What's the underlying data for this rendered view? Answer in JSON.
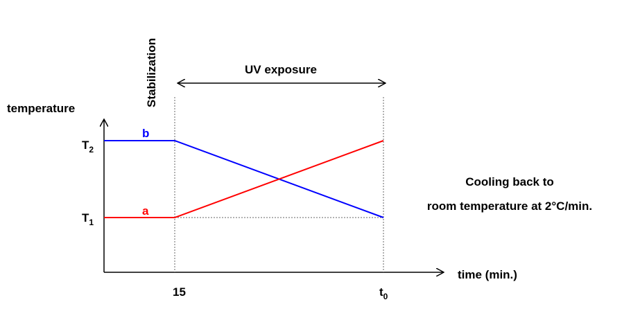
{
  "phase_labels": {
    "stabilization": "Stabilization",
    "uv_exposure": "UV exposure"
  },
  "y_axis": {
    "label": "temperature",
    "ticks": [
      {
        "main": "T",
        "sub": "2"
      },
      {
        "main": "T",
        "sub": "1"
      }
    ]
  },
  "x_axis": {
    "label": "time (min.)",
    "ticks": [
      {
        "main": "15"
      },
      {
        "main": "t",
        "sub": "0"
      }
    ]
  },
  "curves": [
    {
      "name": "b",
      "color": "#0000ff"
    },
    {
      "name": "a",
      "color": "#ff0000"
    }
  ],
  "note": [
    "Cooling back to",
    "room temperature at 2°C/min."
  ]
}
